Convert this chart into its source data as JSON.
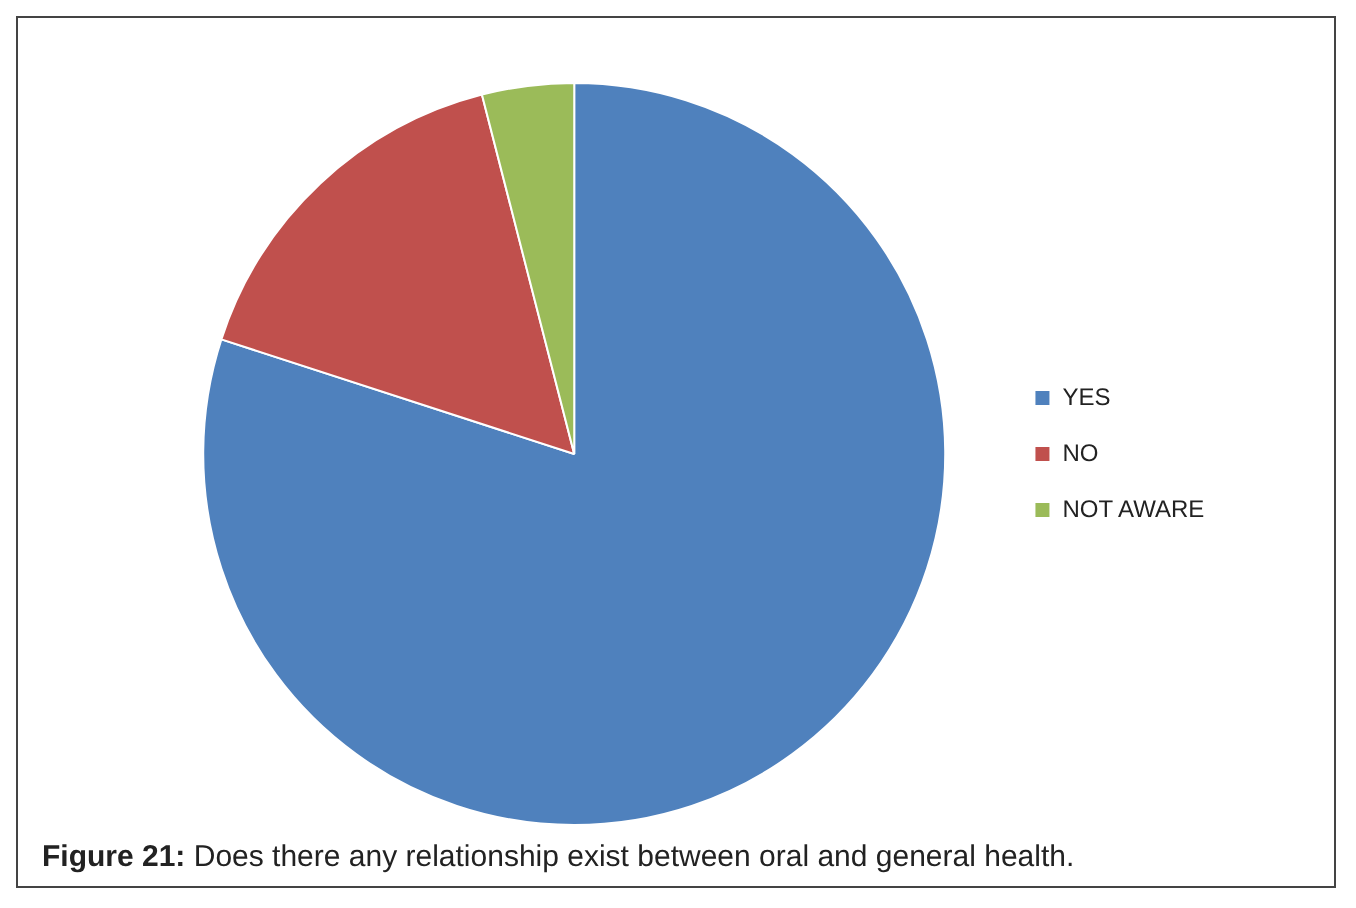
{
  "chart_data": {
    "type": "pie",
    "title": "Figure 21: Does there any relationship exist between oral and general health.",
    "categories": [
      "YES",
      "NO",
      "NOT AWARE"
    ],
    "values": [
      80,
      16,
      4
    ],
    "colors": [
      "#4f81bd",
      "#c0504d",
      "#9bbb59"
    ],
    "legend": "right"
  }
}
